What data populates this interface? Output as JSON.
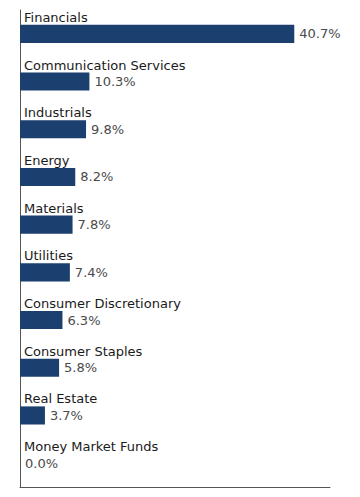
{
  "chart_data": {
    "type": "bar",
    "orientation": "horizontal",
    "categories": [
      "Financials",
      "Communication Services",
      "Industrials",
      "Energy",
      "Materials",
      "Utilities",
      "Consumer Discretionary",
      "Consumer Staples",
      "Real Estate",
      "Money Market Funds"
    ],
    "values": [
      40.7,
      10.3,
      9.8,
      8.2,
      7.8,
      7.4,
      6.3,
      5.8,
      3.7,
      0.0
    ],
    "value_labels": [
      "40.7%",
      "10.3%",
      "9.8%",
      "8.2%",
      "7.8%",
      "7.4%",
      "6.3%",
      "5.8%",
      "3.7%",
      "0.0%"
    ],
    "data_labels": true,
    "color": "#1b3f6e",
    "xlim": [
      0,
      46
    ],
    "tick_labels": "y",
    "grid": false
  }
}
